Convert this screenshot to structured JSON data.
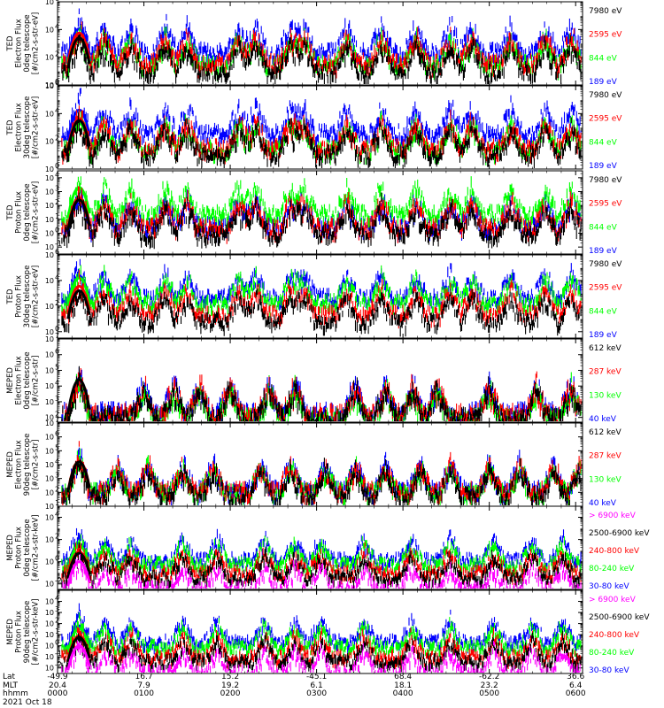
{
  "date_label": "2021 Oct 18",
  "footer": {
    "row_labels": [
      "Lat",
      "MLT",
      "hhmm"
    ],
    "columns": [
      {
        "lat": "-49.9",
        "mlt": "20.4",
        "hhmm": "0000"
      },
      {
        "lat": "16.7",
        "mlt": "7.9",
        "hhmm": "0100"
      },
      {
        "lat": "15.2",
        "mlt": "19.2",
        "hhmm": "0200"
      },
      {
        "lat": "-45.1",
        "mlt": "6.1",
        "hhmm": "0300"
      },
      {
        "lat": "68.4",
        "mlt": "18.1",
        "hhmm": "0400"
      },
      {
        "lat": "-62.2",
        "mlt": "23.2",
        "hhmm": "0500"
      },
      {
        "lat": "36.6",
        "mlt": "6.4",
        "hhmm": "0600"
      }
    ]
  },
  "chart_data": [
    {
      "type": "scatter",
      "ylabel_lines": [
        "TED",
        "Electron Flux",
        "0deg telescope",
        "[#/cm2-s-str-eV]"
      ],
      "y_scale": "log",
      "y_ticks": [
        {
          "exp": 0,
          "label": "10"
        },
        {
          "exp": 2,
          "label": "10"
        },
        {
          "exp": 4,
          "label": "10"
        },
        {
          "exp": 6,
          "label": "10"
        }
      ],
      "ylim_exp": [
        0,
        6
      ],
      "series": [
        {
          "name": "7980 eV",
          "color": "#000000",
          "level": 1.2
        },
        {
          "name": "2595 eV",
          "color": "#ff0000",
          "level": 1.8
        },
        {
          "name": "844 eV",
          "color": "#00ff00",
          "level": 1.7
        },
        {
          "name": "189 eV",
          "color": "#0000ff",
          "level": 2.6
        }
      ],
      "events": [
        0.25,
        0.54,
        0.85,
        1.25,
        1.5,
        2.1,
        2.3,
        2.7,
        2.86,
        3.35,
        3.75,
        4.15,
        4.55,
        4.8,
        5.25,
        5.65,
        5.95
      ]
    },
    {
      "type": "scatter",
      "ylabel_lines": [
        "TED",
        "Electron Flux",
        "30deg telescope",
        "[#/cm2-s-str-eV]"
      ],
      "y_scale": "log",
      "y_ticks": [
        {
          "exp": 0,
          "label": "10"
        },
        {
          "exp": 2,
          "label": "10"
        },
        {
          "exp": 4,
          "label": "10"
        },
        {
          "exp": 6,
          "label": "10"
        }
      ],
      "ylim_exp": [
        0,
        6
      ],
      "series": [
        {
          "name": "7980 eV",
          "color": "#000000",
          "level": 1.3
        },
        {
          "name": "2595 eV",
          "color": "#ff0000",
          "level": 1.7
        },
        {
          "name": "844 eV",
          "color": "#00ff00",
          "level": 1.6
        },
        {
          "name": "189 eV",
          "color": "#0000ff",
          "level": 2.8
        }
      ],
      "events": [
        0.25,
        0.54,
        0.85,
        1.25,
        1.5,
        2.1,
        2.3,
        2.7,
        2.86,
        3.35,
        3.75,
        4.15,
        4.55,
        4.8,
        5.25,
        5.65,
        5.95
      ]
    },
    {
      "type": "scatter",
      "ylabel_lines": [
        "TED",
        "Proton Flux",
        "0deg telescope",
        "[#/cm2-s-str-eV]"
      ],
      "y_scale": "log",
      "y_ticks": [
        {
          "exp": -1,
          "label": "10"
        },
        {
          "exp": 0,
          "label": "10"
        },
        {
          "exp": 1,
          "label": "10"
        },
        {
          "exp": 2,
          "label": "10"
        },
        {
          "exp": 3,
          "label": "10"
        },
        {
          "exp": 4,
          "label": "10"
        }
      ],
      "ylim_exp": [
        -1.5,
        4.5
      ],
      "series": [
        {
          "name": "7980 eV",
          "color": "#000000",
          "level": 0.2
        },
        {
          "name": "2595 eV",
          "color": "#ff0000",
          "level": 0.6
        },
        {
          "name": "844 eV",
          "color": "#00ff00",
          "level": 1.6
        },
        {
          "name": "189 eV",
          "color": "#0000ff",
          "level": 0.7
        }
      ],
      "events": [
        0.25,
        0.54,
        0.85,
        1.25,
        1.5,
        2.1,
        2.3,
        2.7,
        2.86,
        3.35,
        3.75,
        4.15,
        4.55,
        4.8,
        5.25,
        5.65,
        5.95
      ]
    },
    {
      "type": "scatter",
      "ylabel_lines": [
        "TED",
        "Proton Flux",
        "30deg telescope",
        "[#/cm2-s-str-eV]"
      ],
      "y_scale": "log",
      "y_ticks": [
        {
          "exp": 0,
          "label": "10"
        },
        {
          "exp": 2,
          "label": "10"
        },
        {
          "exp": 4,
          "label": "10"
        },
        {
          "exp": 6,
          "label": "10"
        }
      ],
      "ylim_exp": [
        -0.5,
        6
      ],
      "series": [
        {
          "name": "7980 eV",
          "color": "#000000",
          "level": 1.0
        },
        {
          "name": "2595 eV",
          "color": "#ff0000",
          "level": 1.6
        },
        {
          "name": "844 eV",
          "color": "#00ff00",
          "level": 2.5
        },
        {
          "name": "189 eV",
          "color": "#0000ff",
          "level": 2.9
        }
      ],
      "events": [
        0.25,
        0.54,
        0.85,
        1.25,
        1.5,
        2.1,
        2.3,
        2.7,
        2.86,
        3.35,
        3.75,
        4.15,
        4.55,
        4.8,
        5.25,
        5.65,
        5.95
      ]
    },
    {
      "type": "scatter",
      "ylabel_lines": [
        "MEPED",
        "Electron Flux",
        "0deg telescope",
        "[#/cm2-s-str]"
      ],
      "y_scale": "log",
      "y_ticks": [
        {
          "exp": 2,
          "label": "10"
        },
        {
          "exp": 3,
          "label": "10"
        },
        {
          "exp": 4,
          "label": "10"
        },
        {
          "exp": 5,
          "label": "10"
        },
        {
          "exp": 6,
          "label": "10"
        },
        {
          "exp": 7,
          "label": "10"
        }
      ],
      "ylim_exp": [
        1.7,
        7
      ],
      "series": [
        {
          "name": "612 keV",
          "color": "#000000",
          "level": 2.2
        },
        {
          "name": "287 keV",
          "color": "#ff0000",
          "level": 2.4
        },
        {
          "name": "130 keV",
          "color": "#00ff00",
          "level": 2.1
        },
        {
          "name": "40 keV",
          "color": "#0000ff",
          "level": 2.5
        }
      ],
      "events": [
        0.25,
        1.0,
        1.35,
        1.65,
        2.0,
        2.45,
        2.75,
        3.45,
        3.8,
        4.1,
        4.4,
        5.0,
        5.55,
        5.95
      ]
    },
    {
      "type": "scatter",
      "ylabel_lines": [
        "MEPED",
        "Electron Flux",
        "90deg telescope",
        "[#/cm2-s-str]"
      ],
      "y_scale": "log",
      "y_ticks": [
        {
          "exp": 1,
          "label": "10"
        },
        {
          "exp": 2,
          "label": "10"
        },
        {
          "exp": 3,
          "label": "10"
        },
        {
          "exp": 4,
          "label": "10"
        },
        {
          "exp": 5,
          "label": "10"
        },
        {
          "exp": 6,
          "label": "10"
        },
        {
          "exp": 7,
          "label": "10"
        }
      ],
      "ylim_exp": [
        1,
        7
      ],
      "series": [
        {
          "name": "612 keV",
          "color": "#000000",
          "level": 2.0
        },
        {
          "name": "287 keV",
          "color": "#ff0000",
          "level": 2.3
        },
        {
          "name": "130 keV",
          "color": "#00ff00",
          "level": 2.2
        },
        {
          "name": "40 keV",
          "color": "#0000ff",
          "level": 2.4
        }
      ],
      "events": [
        0.25,
        0.7,
        1.05,
        1.45,
        1.8,
        2.35,
        2.7,
        3.1,
        3.45,
        3.8,
        4.2,
        4.55,
        5.0,
        5.35,
        5.75,
        6.05
      ]
    },
    {
      "type": "scatter",
      "ylabel_lines": [
        "MEPED",
        "Proton Flux",
        "0deg telescope",
        "[#/cm2-s-str-keV]"
      ],
      "y_scale": "log",
      "y_ticks": [
        {
          "exp": -2,
          "label": "10"
        },
        {
          "exp": 0,
          "label": "10"
        },
        {
          "exp": 2,
          "label": "10"
        },
        {
          "exp": 4,
          "label": "10"
        }
      ],
      "ylim_exp": [
        -2.5,
        5
      ],
      "series": [
        {
          "name": "> 6900 keV",
          "color": "#ff00ff",
          "level": -2.2
        },
        {
          "name": "2500-6900 keV",
          "color": "#000000",
          "level": -1.2
        },
        {
          "name": "240-800 keV",
          "color": "#ff0000",
          "level": -0.8
        },
        {
          "name": "80-240 keV",
          "color": "#00ff00",
          "level": 0.0
        },
        {
          "name": "30-80 keV",
          "color": "#0000ff",
          "level": 0.4
        }
      ],
      "events": [
        0.25,
        0.55,
        0.85,
        1.45,
        1.85,
        2.4,
        2.75,
        3.05,
        3.55,
        4.1,
        4.55,
        5.05,
        5.5,
        5.85
      ]
    },
    {
      "type": "scatter",
      "ylabel_lines": [
        "MEPED",
        "Proton Flux",
        "90deg telescope",
        "[#/cm2-s-str-keV]"
      ],
      "y_scale": "log",
      "y_ticks": [
        {
          "exp": -2,
          "label": "10"
        },
        {
          "exp": -1,
          "label": "10"
        },
        {
          "exp": 0,
          "label": "10"
        },
        {
          "exp": 1,
          "label": "10"
        },
        {
          "exp": 2,
          "label": "10"
        },
        {
          "exp": 3,
          "label": "10"
        },
        {
          "exp": 4,
          "label": "10"
        }
      ],
      "ylim_exp": [
        -2.5,
        5
      ],
      "series": [
        {
          "name": "> 6900 keV",
          "color": "#ff00ff",
          "level": -2.2
        },
        {
          "name": "2500-6900 keV",
          "color": "#000000",
          "level": -1.2
        },
        {
          "name": "240-800 keV",
          "color": "#ff0000",
          "level": -0.8
        },
        {
          "name": "80-240 keV",
          "color": "#00ff00",
          "level": 0.1
        },
        {
          "name": "30-80 keV",
          "color": "#0000ff",
          "level": 0.6
        }
      ],
      "events": [
        0.25,
        0.55,
        0.85,
        1.45,
        1.85,
        2.4,
        2.75,
        3.05,
        3.55,
        4.1,
        4.55,
        5.05,
        5.5,
        5.85
      ]
    }
  ]
}
